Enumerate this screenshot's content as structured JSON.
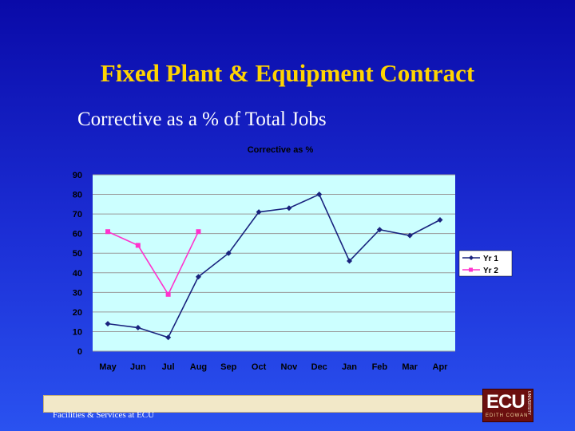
{
  "slide": {
    "title": "Fixed Plant & Equipment Contract",
    "subtitle": "Corrective as a % of Total Jobs",
    "footer": "Facilities & Services at ECU",
    "logo_main": "ECU",
    "logo_sub": "EDITH COWAN",
    "logo_side": "UNIVERSITY"
  },
  "colors": {
    "background": "#1a2cd0",
    "title": "#ffd400",
    "plot_area": "#ccffff",
    "yr1": "#1a237e",
    "yr2": "#ff33cc"
  },
  "chart_data": {
    "type": "line",
    "title": "Corrective as %",
    "xlabel": "",
    "ylabel": "",
    "categories": [
      "May",
      "Jun",
      "Jul",
      "Aug",
      "Sep",
      "Oct",
      "Nov",
      "Dec",
      "Jan",
      "Feb",
      "Mar",
      "Apr"
    ],
    "ylim": [
      0,
      90
    ],
    "yticks": [
      0,
      10,
      20,
      30,
      40,
      50,
      60,
      70,
      80,
      90
    ],
    "grid": true,
    "legend_position": "right",
    "series": [
      {
        "name": "Yr 1",
        "color": "#1a237e",
        "marker": "diamond",
        "values": [
          14,
          12,
          7,
          38,
          50,
          71,
          73,
          80,
          46,
          62,
          59,
          67
        ]
      },
      {
        "name": "Yr 2",
        "color": "#ff33cc",
        "marker": "square",
        "values": [
          61,
          54,
          29,
          61,
          null,
          null,
          null,
          null,
          null,
          null,
          null,
          null
        ]
      }
    ]
  }
}
